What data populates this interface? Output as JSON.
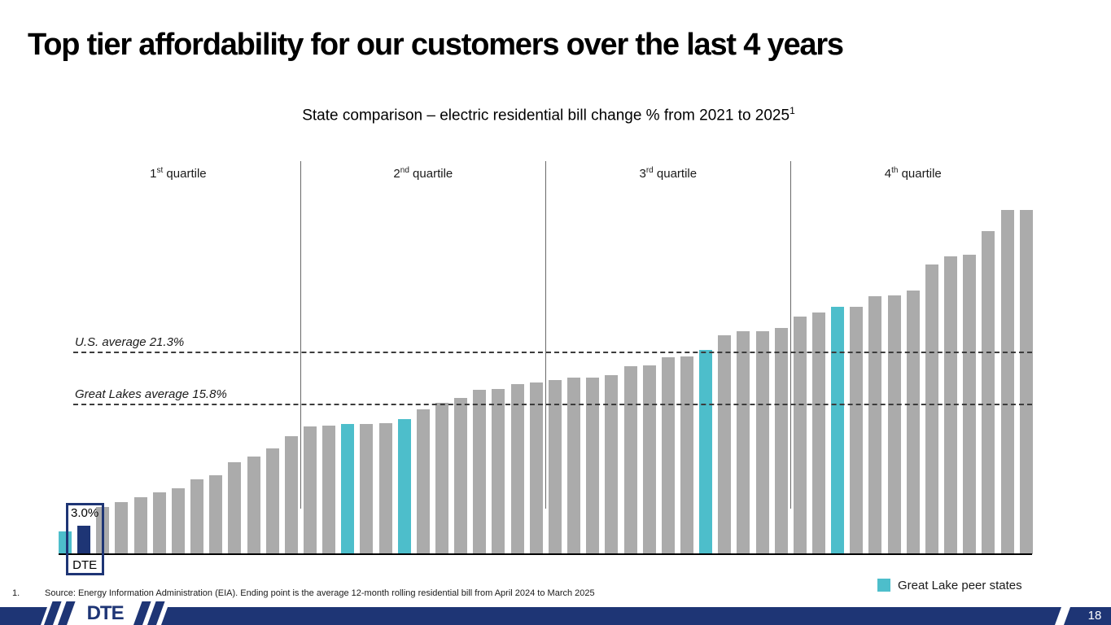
{
  "slide": {
    "title": "Top tier affordability for our customers over the last 4 years",
    "page_number": "18",
    "logo_text": "DTE",
    "footnote": {
      "marker": "1.",
      "text": "Source: Energy Information Administration (EIA). Ending point is the average 12-month rolling residential bill from April 2024 to March 2025"
    }
  },
  "theme": {
    "brand_navy": "#1E3575",
    "peer_teal": "#4DBECB",
    "bar_gray": "#ABABAB"
  },
  "chart_data": {
    "type": "bar",
    "title": "State comparison – electric residential bill change % from 2021 to 2025",
    "title_footnote_marker": "1",
    "ylabel": "electric residential bill change %",
    "ylim": [
      0,
      38
    ],
    "grid": false,
    "legend_position": "bottom-right",
    "quartiles": [
      {
        "number": "1",
        "ordinal": "st",
        "word": "quartile"
      },
      {
        "number": "2",
        "ordinal": "nd",
        "word": "quartile"
      },
      {
        "number": "3",
        "ordinal": "rd",
        "word": "quartile"
      },
      {
        "number": "4",
        "ordinal": "th",
        "word": "quartile"
      }
    ],
    "reference_lines": [
      {
        "label": "U.S. average 21.3%",
        "value": 21.3
      },
      {
        "label": "Great Lakes average 15.8%",
        "value": 15.8
      }
    ],
    "dte_annotation": {
      "value_label": "3.0%",
      "name_label": "DTE"
    },
    "legend": [
      {
        "label": "Great Lake peer states",
        "swatch_color": "#4DBECB"
      }
    ],
    "colors": {
      "state": "#ABABAB",
      "peer": "#4DBECB",
      "dte": "#1E3575"
    },
    "bars": [
      {
        "value": 2.4,
        "group": "peer"
      },
      {
        "value": 3.0,
        "group": "dte"
      },
      {
        "value": 5.0,
        "group": "state"
      },
      {
        "value": 5.5,
        "group": "state"
      },
      {
        "value": 6.0,
        "group": "state"
      },
      {
        "value": 6.5,
        "group": "state"
      },
      {
        "value": 6.9,
        "group": "state"
      },
      {
        "value": 7.9,
        "group": "state"
      },
      {
        "value": 8.3,
        "group": "state"
      },
      {
        "value": 9.7,
        "group": "state"
      },
      {
        "value": 10.3,
        "group": "state"
      },
      {
        "value": 11.1,
        "group": "state"
      },
      {
        "value": 12.4,
        "group": "state"
      },
      {
        "value": 13.4,
        "group": "state"
      },
      {
        "value": 13.5,
        "group": "state"
      },
      {
        "value": 13.7,
        "group": "peer"
      },
      {
        "value": 13.7,
        "group": "state"
      },
      {
        "value": 13.8,
        "group": "state"
      },
      {
        "value": 14.2,
        "group": "peer"
      },
      {
        "value": 15.2,
        "group": "state"
      },
      {
        "value": 15.9,
        "group": "state"
      },
      {
        "value": 16.4,
        "group": "state"
      },
      {
        "value": 17.3,
        "group": "state"
      },
      {
        "value": 17.4,
        "group": "state"
      },
      {
        "value": 17.9,
        "group": "state"
      },
      {
        "value": 18.1,
        "group": "state"
      },
      {
        "value": 18.3,
        "group": "state"
      },
      {
        "value": 18.6,
        "group": "state"
      },
      {
        "value": 18.6,
        "group": "state"
      },
      {
        "value": 18.8,
        "group": "state"
      },
      {
        "value": 19.8,
        "group": "state"
      },
      {
        "value": 19.9,
        "group": "state"
      },
      {
        "value": 20.7,
        "group": "state"
      },
      {
        "value": 20.8,
        "group": "state"
      },
      {
        "value": 21.5,
        "group": "peer"
      },
      {
        "value": 23.0,
        "group": "state"
      },
      {
        "value": 23.5,
        "group": "state"
      },
      {
        "value": 23.5,
        "group": "state"
      },
      {
        "value": 23.8,
        "group": "state"
      },
      {
        "value": 25.0,
        "group": "state"
      },
      {
        "value": 25.4,
        "group": "state"
      },
      {
        "value": 26.0,
        "group": "peer"
      },
      {
        "value": 26.0,
        "group": "state"
      },
      {
        "value": 27.1,
        "group": "state"
      },
      {
        "value": 27.2,
        "group": "state"
      },
      {
        "value": 27.7,
        "group": "state"
      },
      {
        "value": 30.5,
        "group": "state"
      },
      {
        "value": 31.3,
        "group": "state"
      },
      {
        "value": 31.5,
        "group": "state"
      },
      {
        "value": 34.0,
        "group": "state"
      },
      {
        "value": 36.2,
        "group": "state"
      },
      {
        "value": 36.2,
        "group": "state"
      }
    ]
  }
}
